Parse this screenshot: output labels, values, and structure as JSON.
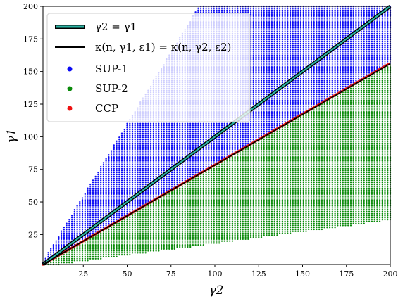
{
  "chart_data": {
    "type": "scatter",
    "title": "",
    "xlabel": "γ2",
    "ylabel": "γ1",
    "xlim": [
      2,
      200
    ],
    "ylim": [
      2,
      200
    ],
    "xticks": [
      25,
      50,
      75,
      100,
      125,
      150,
      175,
      200
    ],
    "yticks": [
      25,
      50,
      75,
      100,
      125,
      150,
      175,
      200
    ],
    "grid": false,
    "legend_position": "top-left",
    "regions": {
      "upper_bound_slope": 2.2,
      "lower_bound_slope": 0.18,
      "ccp_slope": 0.78,
      "grid_spacing": 1.5
    },
    "series": [
      {
        "name": "γ2 = γ1",
        "kind": "line",
        "x": [
          2,
          200
        ],
        "y": [
          2,
          200
        ],
        "color": "#2bb3a3",
        "edge_color": "#000000"
      },
      {
        "name": "κ(n, γ1, ε1) = κ(n, γ2, ε2)",
        "kind": "line",
        "x": [
          2,
          200
        ],
        "y": [
          2,
          156
        ],
        "color": "#000000"
      },
      {
        "name": "SUP-1",
        "kind": "points",
        "color": "#0a0af5",
        "region": "above κ curve, below y = 2.2x"
      },
      {
        "name": "SUP-2",
        "kind": "points",
        "color": "#0a8a0a",
        "region": "below κ curve, above y = 0.18x"
      },
      {
        "name": "CCP",
        "kind": "points",
        "color": "#ee1111",
        "region": "on κ curve",
        "x": [
          2,
          200
        ],
        "y": [
          2,
          156
        ]
      }
    ]
  }
}
